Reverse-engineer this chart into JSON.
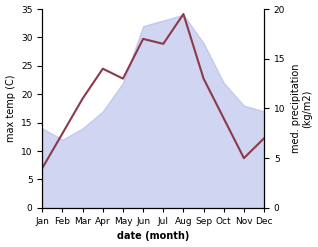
{
  "months": [
    "Jan",
    "Feb",
    "Mar",
    "Apr",
    "May",
    "Jun",
    "Jul",
    "Aug",
    "Sep",
    "Oct",
    "Nov",
    "Dec"
  ],
  "month_indices": [
    0,
    1,
    2,
    3,
    4,
    5,
    6,
    7,
    8,
    9,
    10,
    11
  ],
  "max_temp": [
    14,
    12,
    14,
    17,
    22,
    32,
    33,
    34,
    29,
    22,
    18,
    17
  ],
  "med_precip": [
    4,
    7.5,
    11,
    14,
    13,
    17,
    16.5,
    19.5,
    13,
    9,
    5,
    7
  ],
  "temp_color": "#aab4e8",
  "precip_color": "#8b3a4a",
  "temp_fill_alpha": 0.55,
  "left_ylabel": "max temp (C)",
  "right_ylabel": "med. precipitation\n(kg/m2)",
  "xlabel": "date (month)",
  "ylim_left": [
    0,
    35
  ],
  "ylim_right": [
    0,
    20
  ],
  "yticks_left": [
    0,
    5,
    10,
    15,
    20,
    25,
    30,
    35
  ],
  "yticks_right": [
    0,
    5,
    10,
    15,
    20
  ],
  "background_color": "#ffffff",
  "label_fontsize": 7,
  "tick_fontsize": 6.5,
  "linewidth": 1.5
}
